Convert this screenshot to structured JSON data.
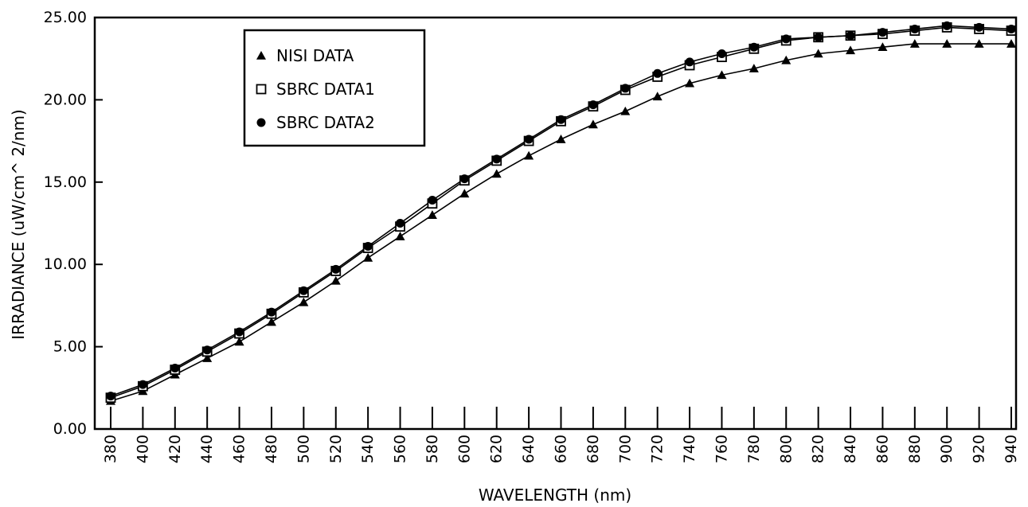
{
  "chart_data": {
    "type": "line",
    "xlabel": "WAVELENGTH (nm)",
    "ylabel": "IRRADIANCE (uW/cm^ 2/nm)",
    "xlim": [
      380,
      940
    ],
    "ylim": [
      0,
      25
    ],
    "x_ticks": [
      380,
      400,
      420,
      440,
      460,
      480,
      500,
      520,
      540,
      560,
      580,
      600,
      620,
      640,
      660,
      680,
      700,
      720,
      740,
      760,
      780,
      800,
      820,
      840,
      860,
      880,
      900,
      920,
      940
    ],
    "y_ticks": [
      "0.00",
      "5.00",
      "10.00",
      "15.00",
      "20.00",
      "25.00"
    ],
    "legend_position": "top-left",
    "grid": false,
    "series": [
      {
        "name": "NISI DATA",
        "marker": "triangle",
        "x": [
          380,
          400,
          420,
          440,
          460,
          480,
          500,
          520,
          540,
          560,
          580,
          600,
          620,
          640,
          660,
          680,
          700,
          720,
          740,
          760,
          780,
          800,
          820,
          840,
          860,
          880,
          900,
          920,
          940
        ],
        "y": [
          1.7,
          2.3,
          3.3,
          4.3,
          5.3,
          6.5,
          7.7,
          9.0,
          10.4,
          11.7,
          13.0,
          14.3,
          15.5,
          16.6,
          17.6,
          18.5,
          19.3,
          20.2,
          21.0,
          21.5,
          21.9,
          22.4,
          22.8,
          23.0,
          23.2,
          23.4,
          23.4,
          23.4,
          23.4
        ]
      },
      {
        "name": "SBRC DATA1",
        "marker": "square-open",
        "x": [
          380,
          400,
          420,
          440,
          460,
          480,
          500,
          520,
          540,
          560,
          580,
          600,
          620,
          640,
          660,
          680,
          700,
          720,
          740,
          760,
          780,
          800,
          820,
          840,
          860,
          880,
          900,
          920,
          940
        ],
        "y": [
          1.9,
          2.6,
          3.6,
          4.7,
          5.8,
          7.0,
          8.3,
          9.6,
          11.0,
          12.3,
          13.7,
          15.1,
          16.3,
          17.5,
          18.7,
          19.6,
          20.6,
          21.4,
          22.1,
          22.6,
          23.1,
          23.6,
          23.8,
          23.9,
          24.0,
          24.2,
          24.4,
          24.3,
          24.2
        ]
      },
      {
        "name": "SBRC DATA2",
        "marker": "circle",
        "x": [
          380,
          400,
          420,
          440,
          460,
          480,
          500,
          520,
          540,
          560,
          580,
          600,
          620,
          640,
          660,
          680,
          700,
          720,
          740,
          760,
          780,
          800,
          820,
          840,
          860,
          880,
          900,
          920,
          940
        ],
        "y": [
          2.0,
          2.7,
          3.7,
          4.8,
          5.9,
          7.1,
          8.4,
          9.7,
          11.1,
          12.5,
          13.9,
          15.2,
          16.4,
          17.6,
          18.8,
          19.7,
          20.7,
          21.6,
          22.3,
          22.8,
          23.2,
          23.7,
          23.8,
          23.9,
          24.1,
          24.3,
          24.5,
          24.4,
          24.3
        ]
      }
    ]
  }
}
